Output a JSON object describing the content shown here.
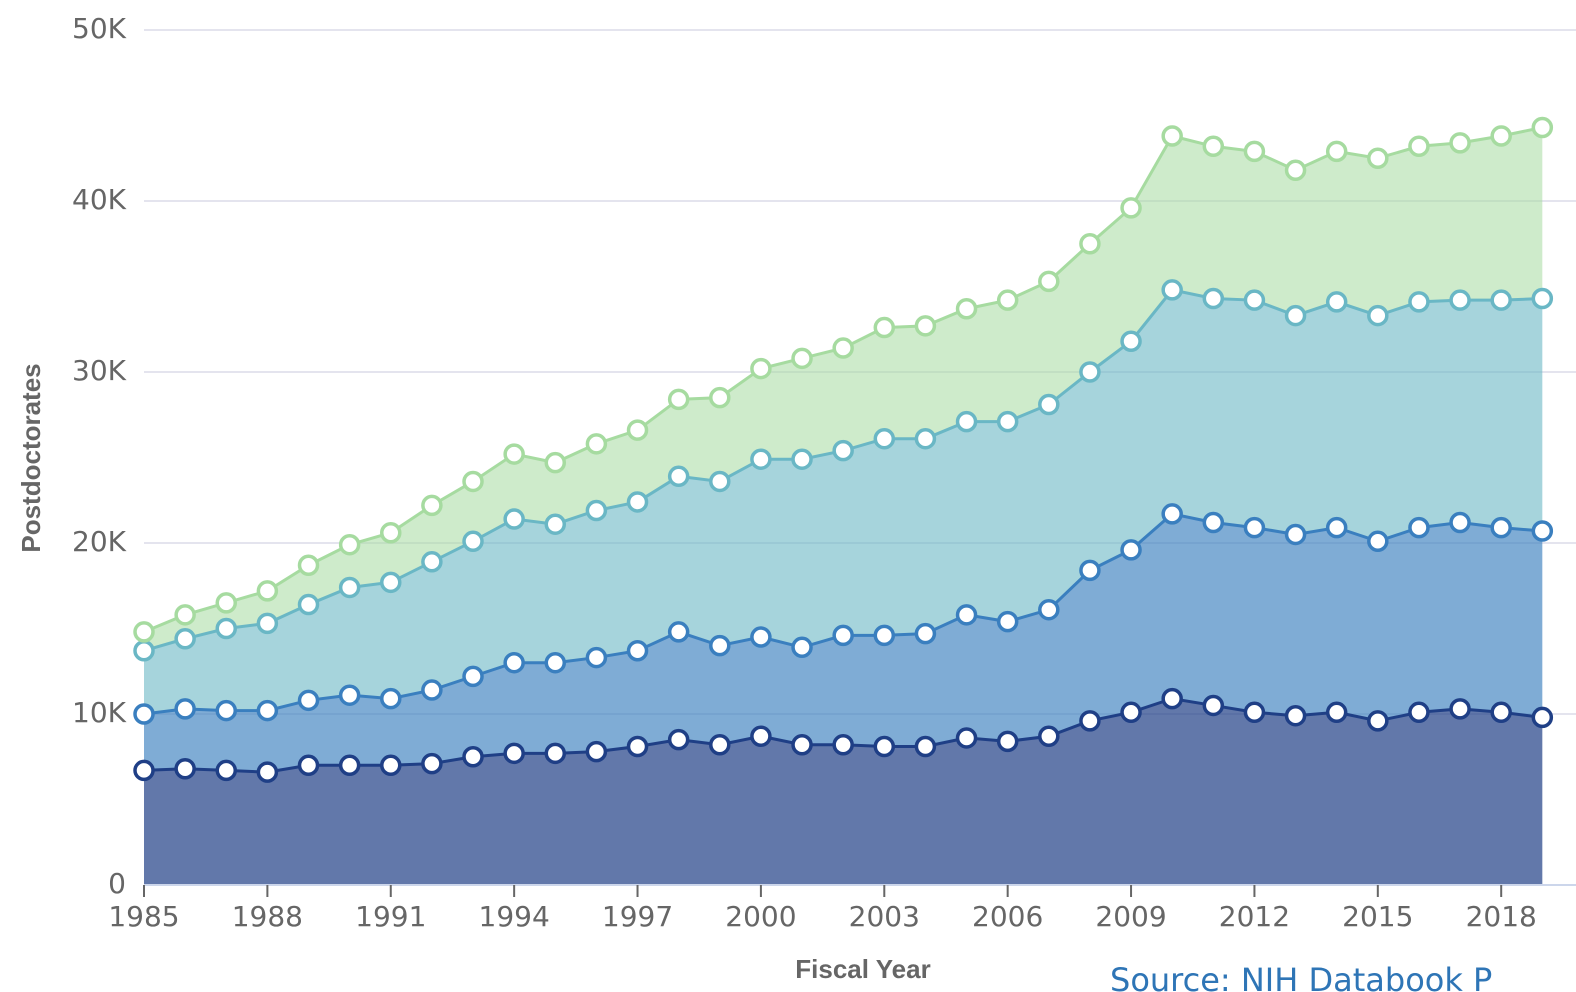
{
  "chart_data": {
    "type": "stacked-area",
    "y_label": "Postdoctorates",
    "x_label": "Fiscal Year",
    "source": "Source: NIH Databook P",
    "x": [
      1985,
      1986,
      1987,
      1988,
      1989,
      1990,
      1991,
      1992,
      1993,
      1994,
      1995,
      1996,
      1997,
      1998,
      1999,
      2000,
      2001,
      2002,
      2003,
      2004,
      2005,
      2006,
      2007,
      2008,
      2009,
      2010,
      2011,
      2012,
      2013,
      2014,
      2015,
      2016,
      2017,
      2018,
      2019
    ],
    "xlim": [
      1985,
      2019.6
    ],
    "xticks": [
      1985,
      1988,
      1991,
      1994,
      1997,
      2000,
      2003,
      2006,
      2009,
      2012,
      2015,
      2018
    ],
    "ylim": [
      0,
      50000
    ],
    "yticks": [
      0,
      {
        "value": 10000,
        "label": "10K"
      },
      {
        "value": 20000,
        "label": "20K"
      },
      {
        "value": 30000,
        "label": "30K"
      },
      {
        "value": 40000,
        "label": "40K"
      },
      {
        "value": 50000,
        "label": "50K"
      }
    ],
    "grid": true,
    "series": [
      {
        "color": "#1f3f86",
        "values": [
          6700,
          6800,
          6700,
          6600,
          7000,
          7000,
          7000,
          7100,
          7500,
          7700,
          7700,
          7800,
          8100,
          8500,
          8200,
          8700,
          8200,
          8200,
          8100,
          8100,
          8600,
          8400,
          8700,
          9600,
          10100,
          10900,
          10500,
          10100,
          9900,
          10100,
          9600,
          10100,
          10300,
          10100,
          9800
        ]
      },
      {
        "color": "#3a7fbf",
        "values": [
          3300,
          3500,
          3500,
          3600,
          3800,
          4100,
          3900,
          4300,
          4700,
          5300,
          5300,
          5500,
          5600,
          6300,
          5800,
          5800,
          5700,
          6400,
          6500,
          6600,
          7200,
          7000,
          7400,
          8800,
          9500,
          10800,
          10700,
          10800,
          10600,
          10800,
          10500,
          10800,
          10900,
          10800,
          10900
        ]
      },
      {
        "color": "#6ab7c5",
        "values": [
          3700,
          4100,
          4800,
          5100,
          5600,
          6300,
          6800,
          7500,
          7900,
          8400,
          8100,
          8600,
          8700,
          9100,
          9600,
          10400,
          11000,
          10800,
          11500,
          11400,
          11300,
          11700,
          12000,
          11600,
          12200,
          13100,
          13100,
          13300,
          12800,
          13200,
          13200,
          13200,
          13000,
          13300,
          13600
        ]
      },
      {
        "color": "#a6dba0",
        "values": [
          1100,
          1400,
          1500,
          1900,
          2300,
          2500,
          2900,
          3300,
          3500,
          3800,
          3600,
          3900,
          4200,
          4500,
          4900,
          5300,
          5900,
          6000,
          6500,
          6600,
          6600,
          7100,
          7200,
          7500,
          7800,
          9000,
          8900,
          8700,
          8500,
          8800,
          9200,
          9100,
          9200,
          9600,
          10000
        ]
      }
    ]
  }
}
